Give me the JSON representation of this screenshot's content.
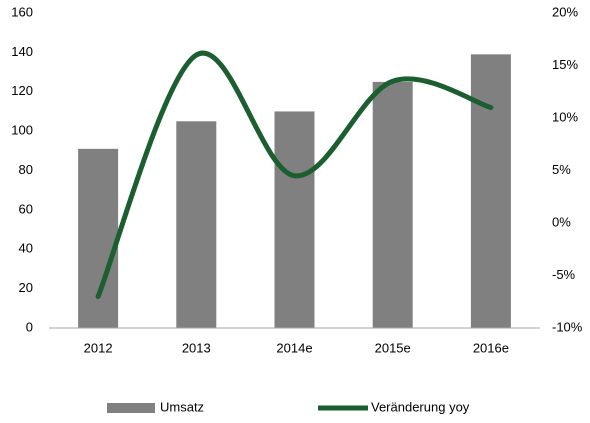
{
  "chart_data": {
    "type": "bar_line",
    "categories": [
      "2012",
      "2013",
      "2014e",
      "2015e",
      "2016e"
    ],
    "series": [
      {
        "name": "Umsatz",
        "type": "bar",
        "color": "#808080",
        "values": [
          91,
          105,
          110,
          125,
          139
        ]
      },
      {
        "name": "Veränderung yoy",
        "type": "line",
        "axis": "y2",
        "color": "#1b5e2f",
        "values": [
          -7,
          16,
          4.5,
          13.5,
          11
        ]
      }
    ],
    "ylim": [
      0,
      160
    ],
    "yticks": [
      0,
      20,
      40,
      60,
      80,
      100,
      120,
      140,
      160
    ],
    "y2lim": [
      -10,
      20
    ],
    "y2ticks": [
      {
        "value": -10,
        "label": "-10%"
      },
      {
        "value": -5,
        "label": "-5%"
      },
      {
        "value": 0,
        "label": "0%"
      },
      {
        "value": 5,
        "label": "5%"
      },
      {
        "value": 10,
        "label": "10%"
      },
      {
        "value": 15,
        "label": "15%"
      },
      {
        "value": 20,
        "label": "20%"
      }
    ],
    "grid": false,
    "legend": "bottom"
  }
}
